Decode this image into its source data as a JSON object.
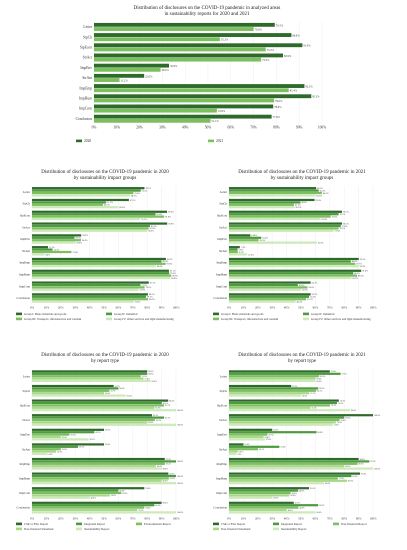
{
  "categories": [
    "Letter",
    "StpCh",
    "StpEcon",
    "StrAct",
    "ImpEnv",
    "StrAnt",
    "ImpEmp",
    "ImpHum",
    "ImpCom",
    "Conclusion"
  ],
  "ticks": [
    "0%",
    "10%",
    "20%",
    "30%",
    "40%",
    "50%",
    "60%",
    "70%",
    "80%",
    "90%",
    "100%"
  ],
  "colors": [
    "#2e6b2a",
    "#4e9a3e",
    "#7cbf5e",
    "#a8d98a",
    "#cde9b9"
  ],
  "chart_data": [
    {
      "type": "bar",
      "title": "Distribution of disclosures on the COVID-19 pandemic in analyzed areas\nin sustainability reports for 2020 and 2021",
      "xlim": [
        0,
        100
      ],
      "series": [
        {
          "name": "2020",
          "values": [
            79.3,
            86.6,
            91.4,
            82.9,
            32.9,
            22.0,
            92.3,
            95.3,
            78.6,
            77.9
          ]
        },
        {
          "name": "2021",
          "values": [
            70.0,
            55.2,
            75.3,
            73.3,
            29.2,
            11.2,
            85.4,
            79.0,
            53.9,
            51.1
          ]
        }
      ]
    },
    {
      "type": "bar",
      "title": "Distribution of disclosures on the COVID-19 pandemic in 2020\nby sustainability impact groups",
      "xlim": [
        0,
        100
      ],
      "series": [
        {
          "name": "Group I: Basic materials and goods",
          "values": [
            78.1,
            67.3,
            93.8,
            93.9,
            34.2,
            11.1,
            93.0,
            95.1,
            81.1,
            80.5
          ]
        },
        {
          "name": "Group II: Industrial",
          "values": [
            75.5,
            51.5,
            85.8,
            81.9,
            29.5,
            14.3,
            89.9,
            95.3,
            75.3,
            79.1
          ]
        },
        {
          "name": "Group III: Transport, infrastructure and tourism",
          "values": [
            70.4,
            49.3,
            91.8,
            81.0,
            34.0,
            27.4,
            92.8,
            96.7,
            78.2,
            80.6
          ]
        },
        {
          "name": "Group IV: Other services and light manufacturing",
          "values": [
            68.1,
            60.0,
            75.0,
            80.0,
            30.0,
            8.6,
            86.0,
            96.0,
            74.0,
            70.6
          ]
        }
      ]
    },
    {
      "type": "bar",
      "title": "Distribution of disclosures on the COVID-19 pandemic in 2021\nby sustainability impact groups",
      "xlim": [
        0,
        100
      ],
      "series": [
        {
          "name": "Group I: Basic materials and goods",
          "values": [
            60.5,
            59.4,
            78.5,
            78.5,
            14.8,
            7.5,
            90.1,
            91.8,
            56.7,
            56.7
          ]
        },
        {
          "name": "Group II: Industrial",
          "values": [
            62.3,
            49.6,
            76.1,
            77.6,
            22.4,
            5.9,
            84.6,
            86.3,
            47.8,
            55.6
          ]
        },
        {
          "name": "Group III: Transport, infrastructure and tourism",
          "values": [
            64.5,
            45.1,
            70.6,
            76.1,
            20.5,
            6.2,
            87.7,
            88.9,
            54.5,
            53.5
          ]
        },
        {
          "name": "Group IV: Other services and light manufacturing",
          "values": [
            60.0,
            45.5,
            63.6,
            72.6,
            61.0,
            12.6,
            90.0,
            85.0,
            50.0,
            46.2
          ]
        }
      ]
    },
    {
      "type": "bar",
      "title": "Distribution of disclosures on the COVID-19 pandemic in 2020\nby report type",
      "xlim": [
        0,
        100
      ],
      "series": [
        {
          "name": "CSR or ESG Report",
          "values": [
            80.0,
            56.7,
            94.6,
            83.3,
            50.0,
            50.0,
            92.2,
            94.7,
            78.0,
            90.0
          ]
        },
        {
          "name": "Integrated Report",
          "values": [
            80.0,
            60.0,
            90.1,
            91.7,
            43.3,
            32.0,
            100.0,
            100.0,
            60.0,
            85.0
          ]
        },
        {
          "name": "Environmental Report",
          "values": [
            75.5,
            53.7,
            91.7,
            85.3,
            26.0,
            20.0,
            92.3,
            95.0,
            62.0,
            78.0
          ]
        },
        {
          "name": "Non-financial Statement",
          "values": [
            77.4,
            50.0,
            85.0,
            80.0,
            20.0,
            16.7,
            86.0,
            90.0,
            54.0,
            73.0
          ]
        },
        {
          "name": "Sustainability Report",
          "values": [
            82.4,
            65.0,
            100.0,
            100.0,
            39.3,
            10.0,
            90.0,
            100.0,
            40.0,
            100.0
          ]
        }
      ]
    },
    {
      "type": "bar",
      "title": "Distribution of disclosures on the COVID-19 pandemic in 2021\nby report type",
      "xlim": [
        0,
        100
      ],
      "series": [
        {
          "name": "CSR or ESG Report",
          "values": [
            70.0,
            43.2,
            76.3,
            100.0,
            30.0,
            10.0,
            90.0,
            91.0,
            55.6,
            45.0
          ]
        },
        {
          "name": "Integrated Report",
          "values": [
            77.5,
            62.0,
            75.0,
            80.0,
            60.8,
            35.0,
            97.5,
            85.0,
            48.0,
            62.0
          ]
        },
        {
          "name": "Non-financial Report",
          "values": [
            62.6,
            60.5,
            70.1,
            76.8,
            26.7,
            20.1,
            89.2,
            75.6,
            42.8,
            48.2
          ]
        },
        {
          "name": "Non-financial Statement",
          "values": [
            60.0,
            55.7,
            56.5,
            74.2,
            24.0,
            6.0,
            80.0,
            82.0,
            42.0,
            40.0
          ]
        },
        {
          "name": "Sustainability Report",
          "values": [
            60.0,
            50.0,
            84.0,
            72.0,
            25.0,
            5.0,
            100.0,
            66.0,
            30.0,
            60.0
          ]
        }
      ]
    }
  ]
}
